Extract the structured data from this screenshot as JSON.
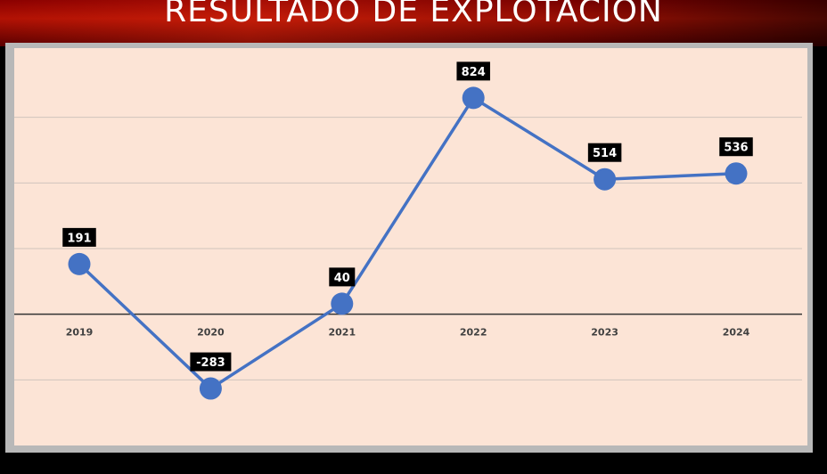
{
  "header": {
    "title": "RESULTADO DE EXPLOTACION"
  },
  "chart_data": {
    "type": "line",
    "categories": [
      "2019",
      "2020",
      "2021",
      "2022",
      "2023",
      "2024"
    ],
    "series": [
      {
        "values": [
          191,
          -283,
          40,
          824,
          514,
          536
        ]
      }
    ],
    "data_labels": [
      "191",
      "-283",
      "40",
      "824",
      "514",
      "536"
    ],
    "ylim": [
      -500,
      1000
    ],
    "grid": true,
    "colors": {
      "line": "#4472c4",
      "marker": "#4472c4",
      "label_bg": "#000000",
      "plot_bg": "#fce4d6"
    }
  }
}
